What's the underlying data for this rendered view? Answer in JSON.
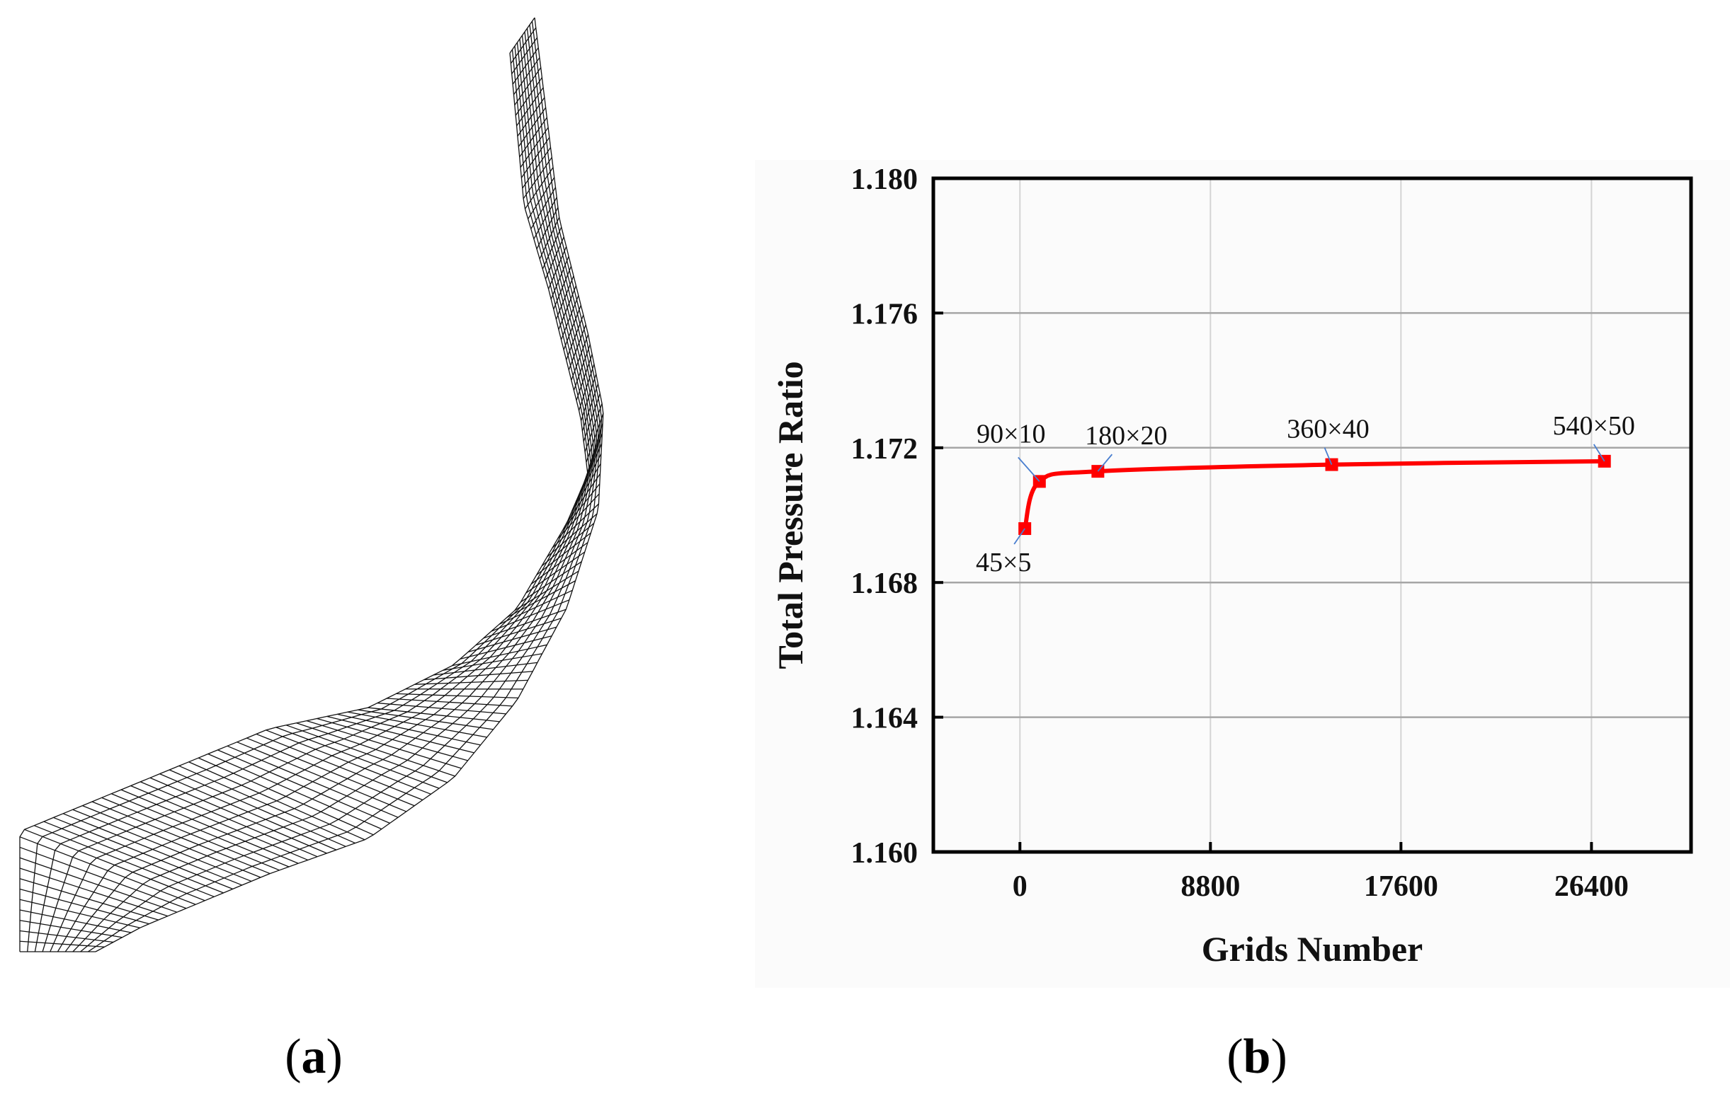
{
  "panels": {
    "a": {
      "label": "(a)",
      "caption_open": "(",
      "caption_letter": "a",
      "caption_close": ")"
    },
    "b": {
      "label": "(b)",
      "caption_open": "(",
      "caption_letter": "b",
      "caption_close": ")"
    }
  },
  "colors": {
    "series": "#ff0000",
    "leader": "#4a7fd0",
    "grid_major": "#a6a6a6",
    "grid_minor": "#d4d4d4",
    "mesh": "#111111",
    "panel_bg": "#fbfbfb"
  },
  "chart_data": {
    "type": "line",
    "title": "",
    "xlabel": "Grids Number",
    "ylabel": "Total Pressure Ratio",
    "xlim": [
      -4000,
      31000
    ],
    "ylim": [
      1.16,
      1.18
    ],
    "xticks": [
      0,
      8800,
      17600,
      26400
    ],
    "xtick_labels": [
      "0",
      "8800",
      "17600",
      "26400"
    ],
    "yticks": [
      1.16,
      1.164,
      1.168,
      1.172,
      1.176,
      1.18
    ],
    "ytick_labels": [
      "1.160",
      "1.164",
      "1.168",
      "1.172",
      "1.176",
      "1.180"
    ],
    "grid": true,
    "series": [
      {
        "name": "Total Pressure Ratio",
        "x": [
          225,
          900,
          3600,
          14400,
          27000
        ],
        "y": [
          1.1696,
          1.171,
          1.1713,
          1.1715,
          1.1716
        ],
        "point_labels": [
          "45×5",
          "90×10",
          "180×20",
          "360×40",
          "540×50"
        ]
      }
    ]
  }
}
